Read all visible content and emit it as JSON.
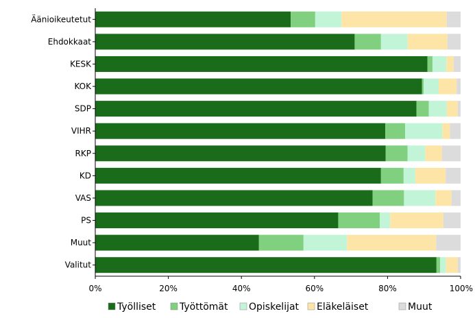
{
  "chart_data": {
    "type": "bar",
    "orientation": "horizontal",
    "stacked": "percent",
    "categories": [
      "Äänioikeutetut",
      "Ehdokkaat",
      "KESK",
      "KOK",
      "SDP",
      "VIHR",
      "RKP",
      "KD",
      "VAS",
      "PS",
      "Muut",
      "Valitut"
    ],
    "series": [
      {
        "name": "Työlliset",
        "color": "#1a6b1a",
        "values": [
          53.5,
          71.0,
          90.9,
          89.4,
          87.9,
          79.4,
          79.5,
          78.2,
          75.9,
          66.5,
          44.8,
          93.4
        ]
      },
      {
        "name": "Työttömät",
        "color": "#80d080",
        "values": [
          6.7,
          7.2,
          1.4,
          0.5,
          3.4,
          5.4,
          6.0,
          6.2,
          8.6,
          11.4,
          12.2,
          1.0
        ]
      },
      {
        "name": "Opiskelijat",
        "color": "#c2f5d8",
        "values": [
          7.2,
          7.3,
          3.8,
          4.1,
          4.9,
          10.2,
          4.8,
          3.2,
          8.6,
          2.8,
          11.9,
          1.6
        ]
      },
      {
        "name": "Eläkeläiset",
        "color": "#fde5a8",
        "values": [
          28.8,
          10.9,
          2.0,
          4.9,
          3.0,
          2.1,
          4.6,
          8.3,
          4.4,
          14.6,
          24.4,
          3.2
        ]
      },
      {
        "name": "Muut",
        "color": "#dcdcdc",
        "values": [
          3.8,
          3.6,
          1.9,
          1.1,
          0.8,
          2.9,
          5.1,
          4.1,
          2.5,
          4.7,
          6.7,
          0.8
        ]
      }
    ],
    "x_ticks": [
      "0%",
      "20%",
      "40%",
      "60%",
      "80%",
      "100%"
    ],
    "xlim": [
      0,
      100
    ],
    "legend_position": "bottom",
    "grid": false
  }
}
